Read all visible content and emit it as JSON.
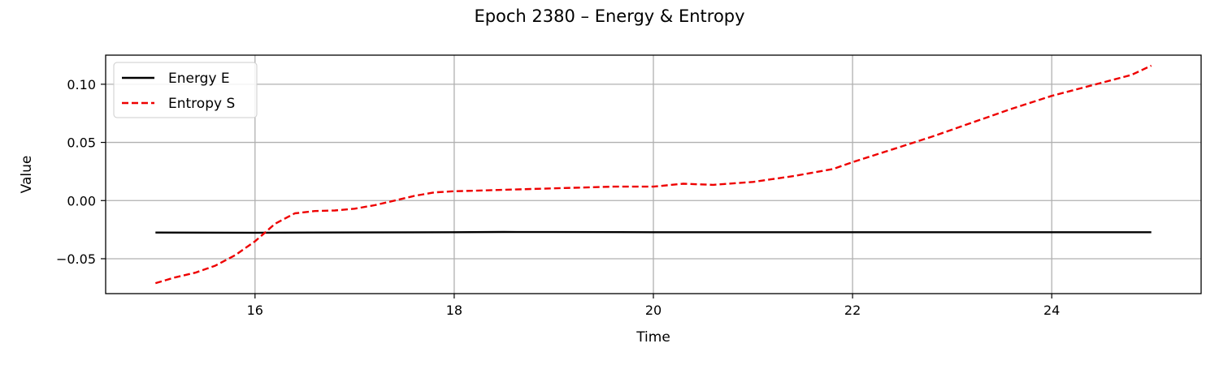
{
  "chart_data": {
    "type": "line",
    "title": "Epoch 2380 – Energy & Entropy",
    "xlabel": "Time",
    "ylabel": "Value",
    "xlim": [
      14.5,
      25.5
    ],
    "ylim": [
      -0.08,
      0.125
    ],
    "xticks": [
      16,
      18,
      20,
      22,
      24
    ],
    "xtick_labels": [
      "16",
      "18",
      "20",
      "22",
      "24"
    ],
    "yticks": [
      -0.05,
      0.0,
      0.05,
      0.1
    ],
    "ytick_labels": [
      "−0.05",
      "0.00",
      "0.05",
      "0.10"
    ],
    "grid": true,
    "legend_position": "top-left",
    "series": [
      {
        "name": "Energy E",
        "color": "#000000",
        "style": "solid",
        "x": [
          15.0,
          16.0,
          17.0,
          18.0,
          18.5,
          19.0,
          20.0,
          21.0,
          22.0,
          23.0,
          24.0,
          25.0
        ],
        "y": [
          -0.0275,
          -0.0276,
          -0.0274,
          -0.0272,
          -0.027,
          -0.0271,
          -0.0272,
          -0.0272,
          -0.0272,
          -0.0272,
          -0.0272,
          -0.0272
        ]
      },
      {
        "name": "Entropy S",
        "color": "#ee0000",
        "style": "dashed",
        "x": [
          15.0,
          15.2,
          15.4,
          15.6,
          15.8,
          16.0,
          16.2,
          16.4,
          16.6,
          16.8,
          17.0,
          17.2,
          17.4,
          17.6,
          17.8,
          18.0,
          18.4,
          18.8,
          19.2,
          19.6,
          20.0,
          20.3,
          20.6,
          21.0,
          21.4,
          21.8,
          22.0,
          22.4,
          22.8,
          23.2,
          23.6,
          24.0,
          24.4,
          24.8,
          25.0
        ],
        "y": [
          -0.071,
          -0.066,
          -0.062,
          -0.056,
          -0.047,
          -0.035,
          -0.02,
          -0.011,
          -0.009,
          -0.0085,
          -0.007,
          -0.004,
          0.0,
          0.004,
          0.007,
          0.008,
          0.009,
          0.01,
          0.011,
          0.012,
          0.012,
          0.0145,
          0.0135,
          0.016,
          0.021,
          0.027,
          0.033,
          0.044,
          0.055,
          0.067,
          0.079,
          0.09,
          0.099,
          0.108,
          0.116
        ]
      }
    ]
  }
}
